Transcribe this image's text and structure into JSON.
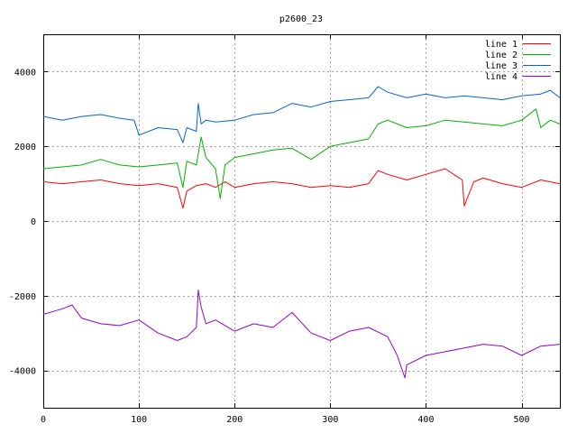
{
  "chart_data": {
    "type": "line",
    "title": "p2600_23",
    "xlabel": "",
    "ylabel": "",
    "xlim": [
      0,
      540
    ],
    "ylim": [
      -5000,
      5000
    ],
    "xticks": [
      0,
      100,
      200,
      300,
      400,
      500
    ],
    "yticks": [
      -4000,
      -2000,
      0,
      2000,
      4000
    ],
    "grid": true,
    "legend_position": "top-right",
    "series": [
      {
        "name": "line 1",
        "color": "#ff0000",
        "x": [
          0,
          20,
          40,
          60,
          80,
          100,
          120,
          140,
          146,
          150,
          160,
          170,
          180,
          190,
          200,
          220,
          240,
          260,
          280,
          300,
          320,
          340,
          350,
          360,
          380,
          400,
          420,
          438,
          440,
          450,
          460,
          480,
          500,
          520,
          540
        ],
        "y": [
          1050,
          1000,
          1050,
          1100,
          1000,
          950,
          1000,
          900,
          350,
          800,
          950,
          1000,
          900,
          1050,
          900,
          1000,
          1050,
          1000,
          900,
          950,
          900,
          1000,
          1350,
          1250,
          1100,
          1250,
          1400,
          1100,
          400,
          1050,
          1150,
          1000,
          900,
          1100,
          1000
        ]
      },
      {
        "name": "line 2",
        "color": "#00b000",
        "x": [
          0,
          20,
          40,
          60,
          80,
          100,
          120,
          140,
          146,
          150,
          160,
          165,
          170,
          180,
          185,
          190,
          200,
          220,
          240,
          260,
          280,
          300,
          320,
          340,
          350,
          360,
          380,
          400,
          420,
          440,
          460,
          480,
          500,
          515,
          520,
          530,
          540
        ],
        "y": [
          1400,
          1450,
          1500,
          1650,
          1500,
          1450,
          1500,
          1550,
          900,
          1600,
          1500,
          2250,
          1700,
          1400,
          600,
          1500,
          1700,
          1800,
          1900,
          1950,
          1650,
          2000,
          2100,
          2200,
          2600,
          2700,
          2500,
          2550,
          2700,
          2650,
          2600,
          2550,
          2700,
          3000,
          2500,
          2700,
          2600
        ]
      },
      {
        "name": "line 3",
        "color": "#0066cc",
        "x": [
          0,
          20,
          40,
          60,
          80,
          95,
          100,
          120,
          140,
          146,
          150,
          160,
          162,
          165,
          170,
          180,
          200,
          220,
          240,
          260,
          280,
          300,
          320,
          340,
          350,
          360,
          380,
          400,
          420,
          440,
          460,
          480,
          500,
          520,
          530,
          540
        ],
        "y": [
          2800,
          2700,
          2800,
          2850,
          2750,
          2700,
          2300,
          2500,
          2450,
          2100,
          2500,
          2400,
          3150,
          2600,
          2700,
          2650,
          2700,
          2850,
          2900,
          3150,
          3050,
          3200,
          3250,
          3300,
          3600,
          3450,
          3300,
          3400,
          3300,
          3350,
          3300,
          3250,
          3350,
          3400,
          3500,
          3300
        ]
      },
      {
        "name": "line 4",
        "color": "#9400d3",
        "x": [
          0,
          20,
          30,
          40,
          60,
          80,
          100,
          120,
          140,
          150,
          160,
          162,
          165,
          170,
          180,
          200,
          220,
          240,
          260,
          280,
          300,
          320,
          340,
          360,
          370,
          378,
          380,
          400,
          420,
          440,
          460,
          480,
          500,
          520,
          540
        ],
        "y": [
          -2500,
          -2350,
          -2250,
          -2600,
          -2750,
          -2800,
          -2650,
          -3000,
          -3200,
          -3100,
          -2850,
          -1850,
          -2300,
          -2750,
          -2650,
          -2950,
          -2750,
          -2850,
          -2450,
          -3000,
          -3200,
          -2950,
          -2850,
          -3100,
          -3600,
          -4200,
          -3850,
          -3600,
          -3500,
          -3400,
          -3300,
          -3350,
          -3600,
          -3350,
          -3300
        ]
      }
    ]
  }
}
